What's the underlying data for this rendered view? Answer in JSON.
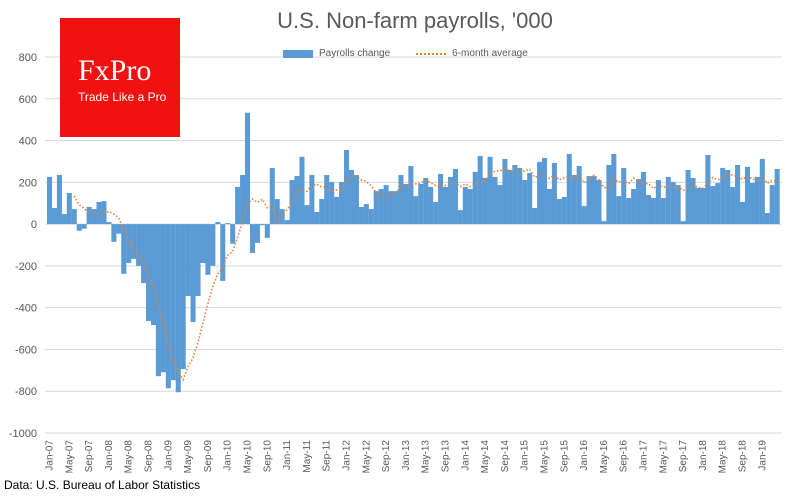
{
  "chart_data": {
    "type": "bar",
    "title": "U.S. Non-farm payrolls, '000",
    "xlabel": "",
    "ylabel": "",
    "ylim": [
      -1000,
      800
    ],
    "yticks": [
      800,
      600,
      400,
      200,
      0,
      -200,
      -400,
      -600,
      -800,
      -1000
    ],
    "grid": true,
    "legend_position": "top",
    "x_tick_labels": [
      "Jan-07",
      "May-07",
      "Sep-07",
      "Jan-08",
      "May-08",
      "Sep-08",
      "Jan-09",
      "May-09",
      "Sep-09",
      "Jan-10",
      "May-10",
      "Sep-10",
      "Jan-11",
      "May-11",
      "Sep-11",
      "Jan-12",
      "May-12",
      "Sep-12",
      "Jan-13",
      "May-13",
      "Sep-13",
      "Jan-14",
      "May-14",
      "Sep-14",
      "Jan-15",
      "May-15",
      "Sep-15",
      "Jan-16",
      "May-16",
      "Sep-16",
      "Jan-17",
      "May-17",
      "Sep-17",
      "Jan-18",
      "May-18",
      "Sep-18",
      "Jan-19"
    ],
    "series": [
      {
        "name": "Payrolls change",
        "type": "bar",
        "color": "#5b9bd5",
        "values": [
          226,
          77,
          235,
          48,
          149,
          72,
          -32,
          -22,
          82,
          72,
          106,
          110,
          10,
          -85,
          -46,
          -238,
          -186,
          -166,
          -200,
          -282,
          -464,
          -483,
          -728,
          -709,
          -786,
          -747,
          -805,
          -694,
          -344,
          -469,
          -344,
          -186,
          -243,
          -200,
          10,
          -272,
          5,
          -94,
          178,
          235,
          533,
          -138,
          -90,
          -5,
          -66,
          269,
          120,
          72,
          19,
          211,
          230,
          322,
          91,
          235,
          58,
          120,
          235,
          202,
          130,
          202,
          355,
          259,
          235,
          82,
          96,
          72,
          158,
          168,
          187,
          158,
          158,
          235,
          192,
          278,
          134,
          192,
          221,
          178,
          106,
          240,
          178,
          226,
          264,
          67,
          178,
          168,
          250,
          326,
          221,
          322,
          226,
          187,
          312,
          259,
          283,
          269,
          211,
          245,
          77,
          298,
          317,
          168,
          293,
          120,
          130,
          336,
          235,
          278,
          86,
          230,
          230,
          211,
          14,
          283,
          336,
          134,
          269,
          125,
          168,
          216,
          250,
          139,
          125,
          211,
          125,
          226,
          202,
          187,
          14,
          259,
          221,
          173,
          173,
          331,
          182,
          197,
          269,
          259,
          178,
          283,
          106,
          274,
          197,
          226,
          312,
          53,
          187,
          264
        ]
      },
      {
        "name": "6-month average",
        "type": "line",
        "style": "dotted",
        "color": "#ed7d31",
        "window": 6
      }
    ]
  },
  "logo": {
    "brand": "FxPro",
    "tagline": "Trade Like a Pro",
    "color": "#f21111"
  },
  "source": "Data: U.S. Bureau of Labor Statistics"
}
